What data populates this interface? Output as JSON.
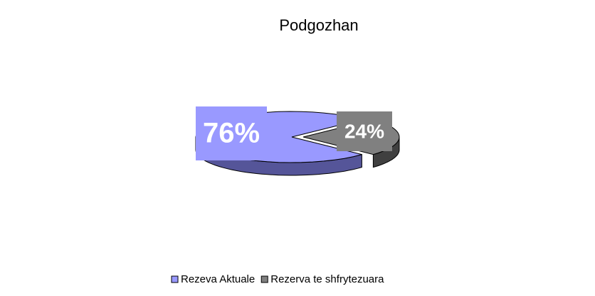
{
  "chart_data": {
    "type": "pie",
    "title": "Podgozhan",
    "categories": [
      "Rezeva Aktuale",
      "Rezerva te shfrytezuara"
    ],
    "values": [
      76,
      24
    ],
    "value_labels": [
      "76%",
      "24%"
    ],
    "colors": [
      "#9999ff",
      "#808080"
    ],
    "side_colors": [
      "#555599",
      "#404040"
    ]
  }
}
